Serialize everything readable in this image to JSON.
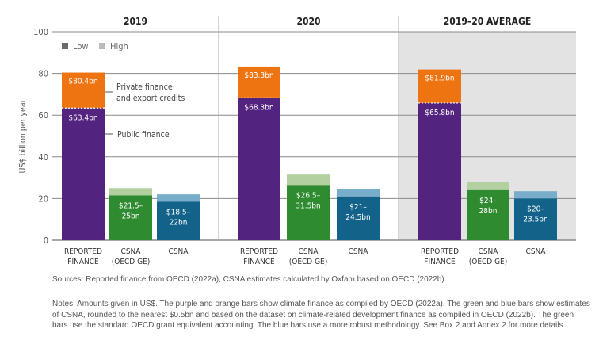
{
  "chart_data": {
    "type": "bar",
    "ylabel": "US$ billion per year",
    "ylim": [
      0,
      100
    ],
    "yticks": [
      0,
      20,
      40,
      60,
      80,
      100
    ],
    "grid": true,
    "legend": {
      "placement": "top-left",
      "entries": [
        "Low",
        "High"
      ]
    },
    "colors": {
      "public": "#52237f",
      "private": "#ee7411",
      "csna_ge_low": "#2e8b2f",
      "csna_ge_high": "#b3d1a0",
      "csna_low": "#12628a",
      "csna_high": "#78aec9",
      "panel_bg": "#e3e3e3"
    },
    "annotations": [
      "Private finance and export credits",
      "Public finance"
    ],
    "panels": [
      {
        "title": "2019",
        "bars": [
          {
            "category": "REPORTED|FINANCE",
            "kind": "reported",
            "public": 63.4,
            "total": 80.4,
            "labels": [
              "$80.4bn",
              "$63.4bn"
            ]
          },
          {
            "category": "CSNA|(OECD GE)",
            "kind": "csna_ge",
            "low": 21.5,
            "high": 25,
            "label": "$21.5–|25bn"
          },
          {
            "category": "CSNA",
            "kind": "csna",
            "low": 18.5,
            "high": 22,
            "label": "$18.5–|22bn"
          }
        ]
      },
      {
        "title": "2020",
        "bars": [
          {
            "category": "REPORTED|FINANCE",
            "kind": "reported",
            "public": 68.3,
            "total": 83.3,
            "labels": [
              "$83.3bn",
              "$68.3bn"
            ]
          },
          {
            "category": "CSNA|(OECD GE)",
            "kind": "csna_ge",
            "low": 26.5,
            "high": 31.5,
            "label": "$26.5–|31.5bn"
          },
          {
            "category": "CSNA",
            "kind": "csna",
            "low": 21,
            "high": 24.5,
            "label": "$21–|24.5bn"
          }
        ]
      },
      {
        "title": "2019–20 AVERAGE",
        "bars": [
          {
            "category": "REPORTED|FINANCE",
            "kind": "reported",
            "public": 65.8,
            "total": 81.9,
            "labels": [
              "$81.9bn",
              "$65.8bn"
            ]
          },
          {
            "category": "CSNA|(OECD GE)",
            "kind": "csna_ge",
            "low": 24,
            "high": 28,
            "label": "$24–|28bn"
          },
          {
            "category": "CSNA",
            "kind": "csna",
            "low": 20,
            "high": 23.5,
            "label": "$20–|23.5bn"
          }
        ]
      }
    ]
  },
  "footer": {
    "sources": "Sources: Reported finance from OECD (2022a), CSNA estimates calculated by Oxfam based on OECD (2022b).",
    "notes": "Notes: Amounts given in US$. The purple and orange bars show climate finance as compiled by OECD (2022a). The green and blue bars show estimates of CSNA, rounded to the nearest $0.5bn and based on the dataset on climate-related development finance as compiled in OECD (2022b). The green bars use the standard OECD grant equivalent accounting. The blue bars use a more robust methodology. See Box 2 and Annex 2 for more details."
  }
}
